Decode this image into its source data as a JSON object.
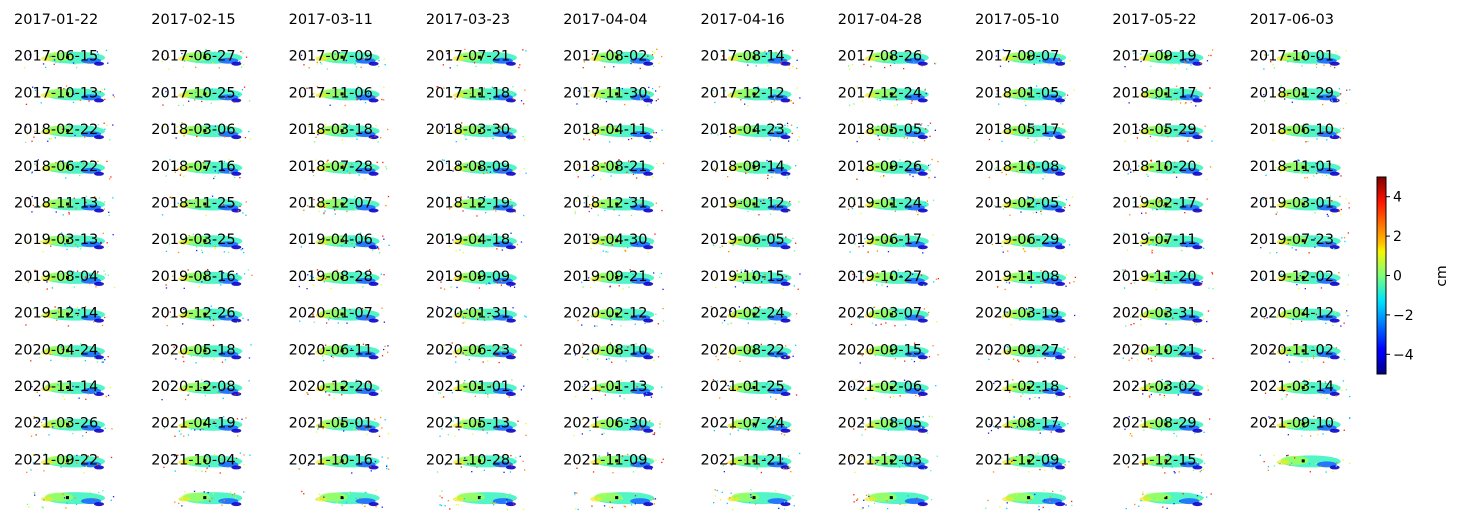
{
  "chart_data": {
    "type": "heatmap",
    "title": "",
    "grid": false,
    "colormap": "jet",
    "colorbar": {
      "label": "cm",
      "min": -5,
      "max": 5,
      "ticks": [
        "4",
        "2",
        "0",
        "−2",
        "−4"
      ]
    },
    "panels": [
      "2017-01-22",
      "2017-02-15",
      "2017-03-11",
      "2017-03-23",
      "2017-04-04",
      "2017-04-16",
      "2017-04-28",
      "2017-05-10",
      "2017-05-22",
      "2017-06-03",
      "2017-06-15",
      "2017-06-27",
      "2017-07-09",
      "2017-07-21",
      "2017-08-02",
      "2017-08-14",
      "2017-08-26",
      "2017-09-07",
      "2017-09-19",
      "2017-10-01",
      "2017-10-13",
      "2017-10-25",
      "2017-11-06",
      "2017-11-18",
      "2017-11-30",
      "2017-12-12",
      "2017-12-24",
      "2018-01-05",
      "2018-01-17",
      "2018-01-29",
      "2018-02-22",
      "2018-03-06",
      "2018-03-18",
      "2018-03-30",
      "2018-04-11",
      "2018-04-23",
      "2018-05-05",
      "2018-05-17",
      "2018-05-29",
      "2018-06-10",
      "2018-06-22",
      "2018-07-16",
      "2018-07-28",
      "2018-08-09",
      "2018-08-21",
      "2018-09-14",
      "2018-09-26",
      "2018-10-08",
      "2018-10-20",
      "2018-11-01",
      "2018-11-13",
      "2018-11-25",
      "2018-12-07",
      "2018-12-19",
      "2018-12-31",
      "2019-01-12",
      "2019-01-24",
      "2019-02-05",
      "2019-02-17",
      "2019-03-01",
      "2019-03-13",
      "2019-03-25",
      "2019-04-06",
      "2019-04-18",
      "2019-04-30",
      "2019-06-05",
      "2019-06-17",
      "2019-06-29",
      "2019-07-11",
      "2019-07-23",
      "2019-08-04",
      "2019-08-16",
      "2019-08-28",
      "2019-09-09",
      "2019-09-21",
      "2019-10-15",
      "2019-10-27",
      "2019-11-08",
      "2019-11-20",
      "2019-12-02",
      "2019-12-14",
      "2019-12-26",
      "2020-01-07",
      "2020-01-31",
      "2020-02-12",
      "2020-02-24",
      "2020-03-07",
      "2020-03-19",
      "2020-03-31",
      "2020-04-12",
      "2020-04-24",
      "2020-05-18",
      "2020-06-11",
      "2020-06-23",
      "2020-08-10",
      "2020-08-22",
      "2020-09-15",
      "2020-09-27",
      "2020-10-21",
      "2020-11-02",
      "2020-11-14",
      "2020-12-08",
      "2020-12-20",
      "2021-01-01",
      "2021-01-13",
      "2021-01-25",
      "2021-02-06",
      "2021-02-18",
      "2021-03-02",
      "2021-03-14",
      "2021-03-26",
      "2021-04-19",
      "2021-05-01",
      "2021-05-13",
      "2021-06-30",
      "2021-07-24",
      "2021-08-05",
      "2021-08-17",
      "2021-08-29",
      "2021-09-10",
      "2021-09-22",
      "2021-10-04",
      "2021-10-16",
      "2021-10-28",
      "2021-11-09",
      "2021-11-21",
      "2021-12-03",
      "2021-12-09",
      "2021-12-15"
    ]
  }
}
